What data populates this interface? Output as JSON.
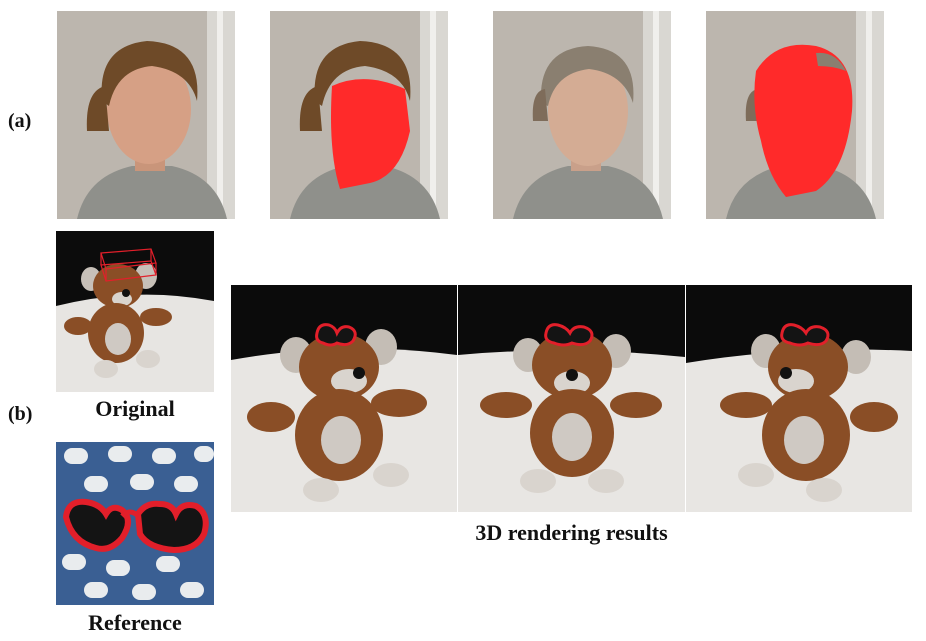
{
  "figure": {
    "row_a_label": "(a)",
    "row_b_label": "(b)",
    "original_caption": "Original",
    "reference_caption": "Reference",
    "results_caption": "3D rendering results"
  },
  "colors": {
    "mask_red": "#ff2a2a",
    "wall_gray": "#b9b3ab",
    "sweater_gray": "#8d8e89",
    "bear_brown": "#8a4e26",
    "cloth_blue": "#3a5f93",
    "glasses_red": "#e21f2a"
  }
}
